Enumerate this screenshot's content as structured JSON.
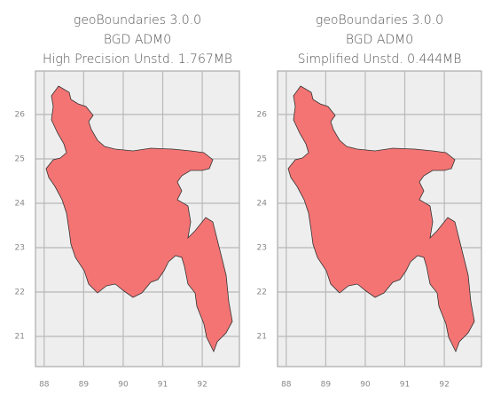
{
  "chart_data": [
    {
      "type": "map",
      "title": [
        "geoBoundaries 3.0.0",
        "BGD ADM0",
        "High Precision Unstd. 1.767MB"
      ],
      "xlim": [
        87.78,
        92.94
      ],
      "ylim": [
        20.32,
        26.98
      ],
      "xticks": [
        88,
        89,
        90,
        91,
        92
      ],
      "yticks": [
        21,
        22,
        23,
        24,
        25,
        26
      ],
      "grid": true,
      "color": "#f47474"
    },
    {
      "type": "map",
      "title": [
        "geoBoundaries 3.0.0",
        "BGD ADM0",
        "Simplified Unstd. 0.444MB"
      ],
      "xlim": [
        87.78,
        92.94
      ],
      "ylim": [
        20.32,
        26.98
      ],
      "xticks": [
        88,
        89,
        90,
        91,
        92
      ],
      "yticks": [
        21,
        22,
        23,
        24,
        25,
        26
      ],
      "grid": true,
      "color": "#f47474"
    }
  ]
}
